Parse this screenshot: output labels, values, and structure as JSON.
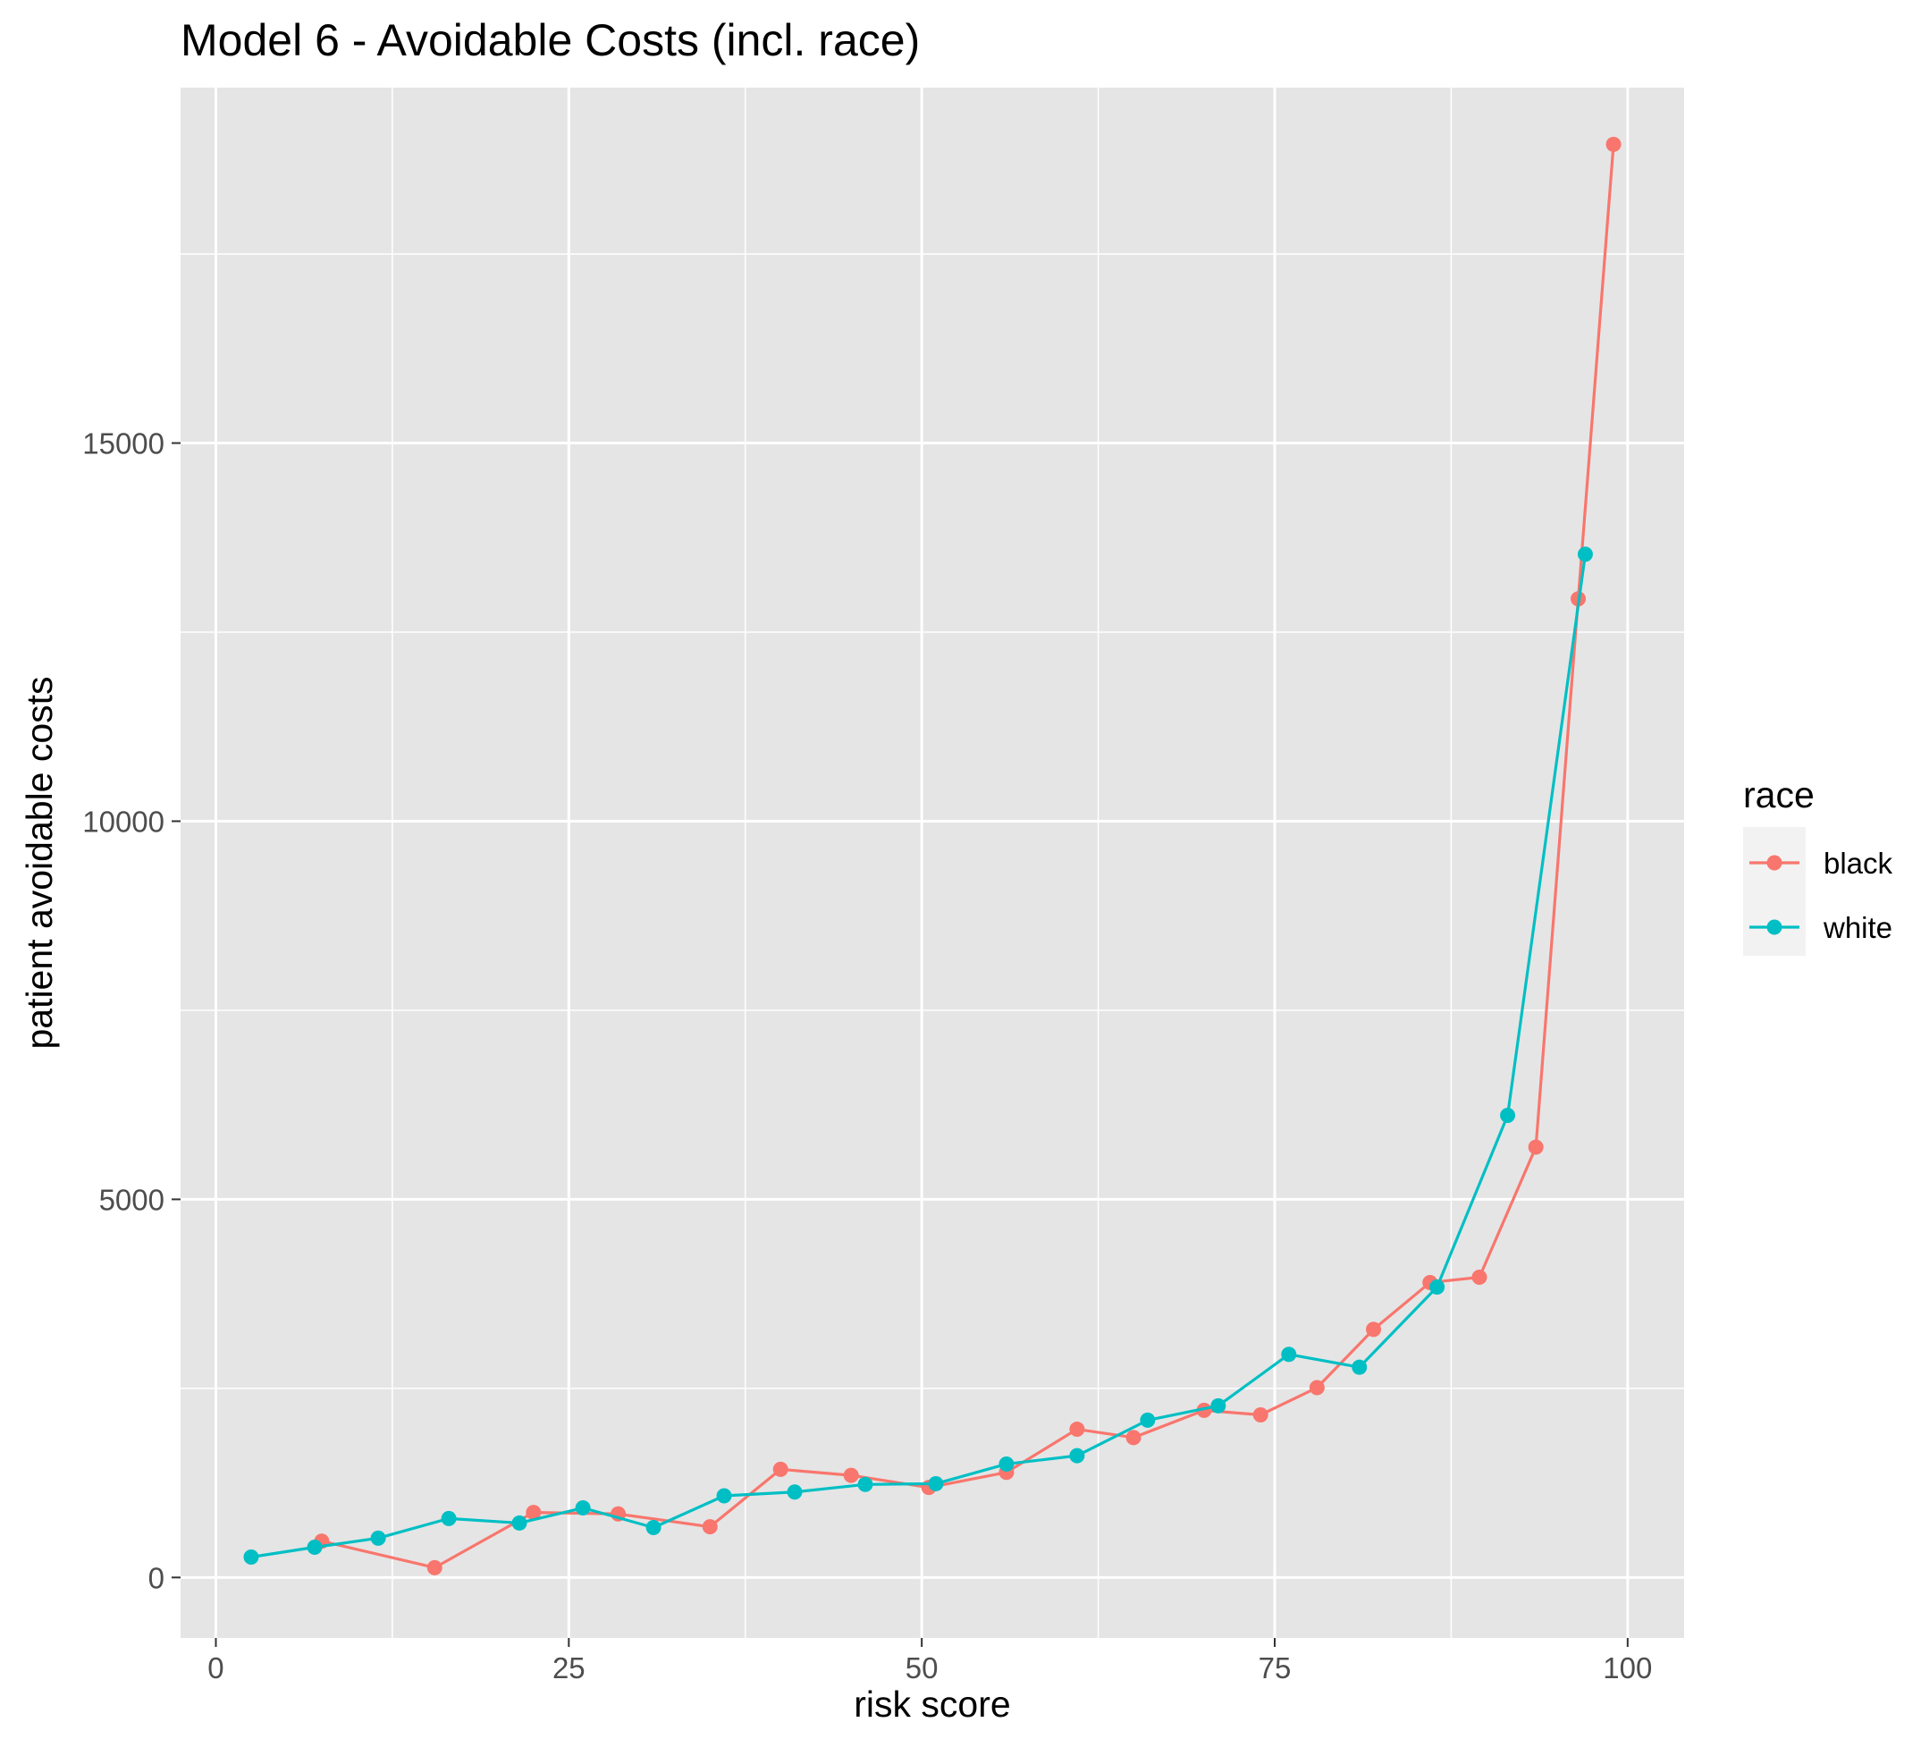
{
  "chart_data": {
    "type": "line",
    "title": "Model 6 - Avoidable Costs (incl. race)",
    "xlabel": "risk score",
    "ylabel": "patient avoidable costs",
    "xlim": [
      -2.5,
      104
    ],
    "ylim": [
      -800,
      19700
    ],
    "x_ticks": [
      0,
      25,
      50,
      75,
      100
    ],
    "x_tick_labels": [
      "0",
      "25",
      "50",
      "75",
      "100"
    ],
    "y_ticks": [
      0,
      5000,
      10000,
      15000
    ],
    "y_tick_labels": [
      "0",
      "5000",
      "10000",
      "15000"
    ],
    "grid": true,
    "panel_background": "#e5e5e5",
    "legend": {
      "title": "race",
      "position": "right",
      "entries": [
        "black",
        "white"
      ]
    },
    "series": [
      {
        "name": "black",
        "color": "#F8766D",
        "x": [
          7.5,
          15.5,
          22.5,
          28.5,
          35,
          40,
          45,
          50.5,
          56,
          61,
          65,
          70,
          74,
          78,
          82,
          86,
          89.5,
          93.5,
          96.5,
          99
        ],
        "y": [
          480,
          130,
          860,
          840,
          670,
          1430,
          1350,
          1190,
          1390,
          1960,
          1850,
          2210,
          2150,
          2510,
          3280,
          3900,
          3970,
          5690,
          12940,
          18950
        ]
      },
      {
        "name": "white",
        "color": "#00BFC4",
        "x": [
          2.5,
          7,
          11.5,
          16.5,
          21.5,
          26,
          31,
          36,
          41,
          46,
          51,
          56,
          61,
          66,
          71,
          76,
          81,
          86.5,
          91.5,
          97
        ],
        "y": [
          270,
          400,
          520,
          780,
          720,
          920,
          660,
          1080,
          1130,
          1230,
          1240,
          1500,
          1610,
          2080,
          2270,
          2950,
          2780,
          3840,
          6110,
          13530
        ]
      }
    ]
  }
}
